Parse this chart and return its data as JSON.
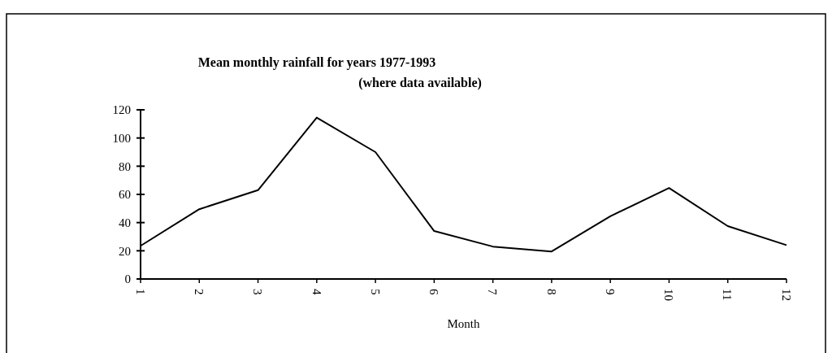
{
  "chart_data": {
    "type": "line",
    "title": "Mean monthly rainfall for years 1977-1993",
    "subtitle": "(where data available)",
    "xlabel": "Month",
    "categories": [
      "1",
      "2",
      "3",
      "4",
      "5",
      "6",
      "7",
      "8",
      "9",
      "10",
      "11",
      "12"
    ],
    "series": [
      {
        "color": "#000000",
        "values": [
          23.5,
          49.5,
          63,
          114.5,
          90,
          34,
          23,
          19.5,
          44.5,
          64.5,
          37.5,
          24
        ]
      }
    ],
    "ylim": [
      0,
      120
    ],
    "yticks": [
      0,
      20,
      40,
      60,
      80,
      100,
      120
    ],
    "grid": false,
    "marker": "none",
    "line_style": "solid"
  }
}
